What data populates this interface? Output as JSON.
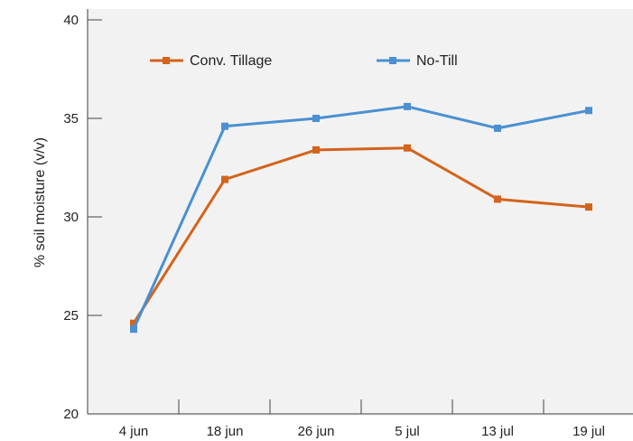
{
  "chart_data": {
    "type": "line",
    "title": "",
    "xlabel": "",
    "ylabel": "% soil moisture (v/v)",
    "categories": [
      "4 jun",
      "18 jun",
      "26 jun",
      "5 jul",
      "13 jul",
      "19 jul"
    ],
    "ylim": [
      20,
      40
    ],
    "yticks": [
      20,
      25,
      30,
      35,
      40
    ],
    "grid": false,
    "legend_position": "top",
    "series": [
      {
        "name": "Conv. Tillage",
        "color": "#d4631c",
        "values": [
          24.6,
          31.9,
          33.4,
          33.5,
          30.9,
          30.5
        ]
      },
      {
        "name": "No-Till",
        "color": "#4a90d2",
        "values": [
          24.3,
          34.6,
          35.0,
          35.6,
          34.5,
          35.4
        ]
      }
    ]
  }
}
